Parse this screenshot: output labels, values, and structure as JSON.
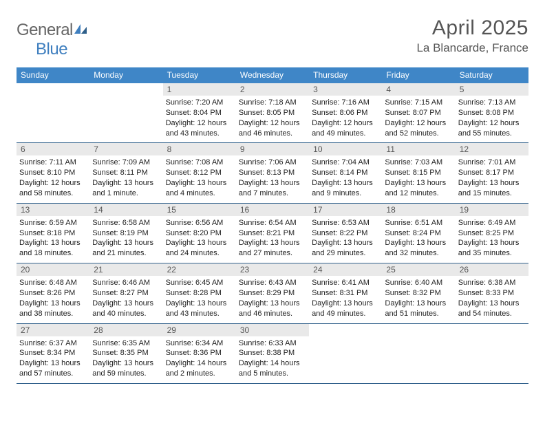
{
  "brand": {
    "name1": "General",
    "name2": "Blue"
  },
  "title": "April 2025",
  "location": "La Blancarde, France",
  "colors": {
    "header_bar": "#3f86c7",
    "daynum_bg": "#e9e9e9",
    "week_border": "#2e5f8a",
    "text_dark": "#222222",
    "text_muted": "#555555",
    "logo_blue": "#3f7fbf"
  },
  "typography": {
    "title_fontsize": 30,
    "location_fontsize": 17,
    "dow_fontsize": 12,
    "body_fontsize": 11
  },
  "days_of_week": [
    "Sunday",
    "Monday",
    "Tuesday",
    "Wednesday",
    "Thursday",
    "Friday",
    "Saturday"
  ],
  "weeks": [
    [
      null,
      null,
      {
        "n": "1",
        "sunrise": "Sunrise: 7:20 AM",
        "sunset": "Sunset: 8:04 PM",
        "daylight": "Daylight: 12 hours and 43 minutes."
      },
      {
        "n": "2",
        "sunrise": "Sunrise: 7:18 AM",
        "sunset": "Sunset: 8:05 PM",
        "daylight": "Daylight: 12 hours and 46 minutes."
      },
      {
        "n": "3",
        "sunrise": "Sunrise: 7:16 AM",
        "sunset": "Sunset: 8:06 PM",
        "daylight": "Daylight: 12 hours and 49 minutes."
      },
      {
        "n": "4",
        "sunrise": "Sunrise: 7:15 AM",
        "sunset": "Sunset: 8:07 PM",
        "daylight": "Daylight: 12 hours and 52 minutes."
      },
      {
        "n": "5",
        "sunrise": "Sunrise: 7:13 AM",
        "sunset": "Sunset: 8:08 PM",
        "daylight": "Daylight: 12 hours and 55 minutes."
      }
    ],
    [
      {
        "n": "6",
        "sunrise": "Sunrise: 7:11 AM",
        "sunset": "Sunset: 8:10 PM",
        "daylight": "Daylight: 12 hours and 58 minutes."
      },
      {
        "n": "7",
        "sunrise": "Sunrise: 7:09 AM",
        "sunset": "Sunset: 8:11 PM",
        "daylight": "Daylight: 13 hours and 1 minute."
      },
      {
        "n": "8",
        "sunrise": "Sunrise: 7:08 AM",
        "sunset": "Sunset: 8:12 PM",
        "daylight": "Daylight: 13 hours and 4 minutes."
      },
      {
        "n": "9",
        "sunrise": "Sunrise: 7:06 AM",
        "sunset": "Sunset: 8:13 PM",
        "daylight": "Daylight: 13 hours and 7 minutes."
      },
      {
        "n": "10",
        "sunrise": "Sunrise: 7:04 AM",
        "sunset": "Sunset: 8:14 PM",
        "daylight": "Daylight: 13 hours and 9 minutes."
      },
      {
        "n": "11",
        "sunrise": "Sunrise: 7:03 AM",
        "sunset": "Sunset: 8:15 PM",
        "daylight": "Daylight: 13 hours and 12 minutes."
      },
      {
        "n": "12",
        "sunrise": "Sunrise: 7:01 AM",
        "sunset": "Sunset: 8:17 PM",
        "daylight": "Daylight: 13 hours and 15 minutes."
      }
    ],
    [
      {
        "n": "13",
        "sunrise": "Sunrise: 6:59 AM",
        "sunset": "Sunset: 8:18 PM",
        "daylight": "Daylight: 13 hours and 18 minutes."
      },
      {
        "n": "14",
        "sunrise": "Sunrise: 6:58 AM",
        "sunset": "Sunset: 8:19 PM",
        "daylight": "Daylight: 13 hours and 21 minutes."
      },
      {
        "n": "15",
        "sunrise": "Sunrise: 6:56 AM",
        "sunset": "Sunset: 8:20 PM",
        "daylight": "Daylight: 13 hours and 24 minutes."
      },
      {
        "n": "16",
        "sunrise": "Sunrise: 6:54 AM",
        "sunset": "Sunset: 8:21 PM",
        "daylight": "Daylight: 13 hours and 27 minutes."
      },
      {
        "n": "17",
        "sunrise": "Sunrise: 6:53 AM",
        "sunset": "Sunset: 8:22 PM",
        "daylight": "Daylight: 13 hours and 29 minutes."
      },
      {
        "n": "18",
        "sunrise": "Sunrise: 6:51 AM",
        "sunset": "Sunset: 8:24 PM",
        "daylight": "Daylight: 13 hours and 32 minutes."
      },
      {
        "n": "19",
        "sunrise": "Sunrise: 6:49 AM",
        "sunset": "Sunset: 8:25 PM",
        "daylight": "Daylight: 13 hours and 35 minutes."
      }
    ],
    [
      {
        "n": "20",
        "sunrise": "Sunrise: 6:48 AM",
        "sunset": "Sunset: 8:26 PM",
        "daylight": "Daylight: 13 hours and 38 minutes."
      },
      {
        "n": "21",
        "sunrise": "Sunrise: 6:46 AM",
        "sunset": "Sunset: 8:27 PM",
        "daylight": "Daylight: 13 hours and 40 minutes."
      },
      {
        "n": "22",
        "sunrise": "Sunrise: 6:45 AM",
        "sunset": "Sunset: 8:28 PM",
        "daylight": "Daylight: 13 hours and 43 minutes."
      },
      {
        "n": "23",
        "sunrise": "Sunrise: 6:43 AM",
        "sunset": "Sunset: 8:29 PM",
        "daylight": "Daylight: 13 hours and 46 minutes."
      },
      {
        "n": "24",
        "sunrise": "Sunrise: 6:41 AM",
        "sunset": "Sunset: 8:31 PM",
        "daylight": "Daylight: 13 hours and 49 minutes."
      },
      {
        "n": "25",
        "sunrise": "Sunrise: 6:40 AM",
        "sunset": "Sunset: 8:32 PM",
        "daylight": "Daylight: 13 hours and 51 minutes."
      },
      {
        "n": "26",
        "sunrise": "Sunrise: 6:38 AM",
        "sunset": "Sunset: 8:33 PM",
        "daylight": "Daylight: 13 hours and 54 minutes."
      }
    ],
    [
      {
        "n": "27",
        "sunrise": "Sunrise: 6:37 AM",
        "sunset": "Sunset: 8:34 PM",
        "daylight": "Daylight: 13 hours and 57 minutes."
      },
      {
        "n": "28",
        "sunrise": "Sunrise: 6:35 AM",
        "sunset": "Sunset: 8:35 PM",
        "daylight": "Daylight: 13 hours and 59 minutes."
      },
      {
        "n": "29",
        "sunrise": "Sunrise: 6:34 AM",
        "sunset": "Sunset: 8:36 PM",
        "daylight": "Daylight: 14 hours and 2 minutes."
      },
      {
        "n": "30",
        "sunrise": "Sunrise: 6:33 AM",
        "sunset": "Sunset: 8:38 PM",
        "daylight": "Daylight: 14 hours and 5 minutes."
      },
      null,
      null,
      null
    ]
  ]
}
